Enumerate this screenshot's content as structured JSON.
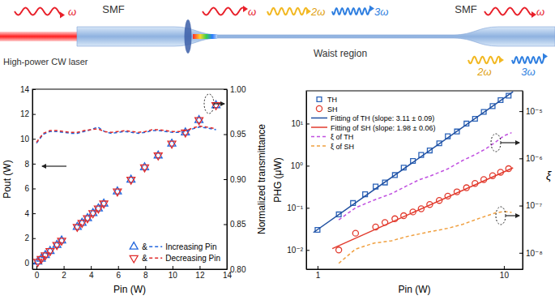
{
  "diagram": {
    "labels": [
      "SMF",
      "High-power CW laser",
      "ω",
      "ω",
      "2ω",
      "3ω",
      "Waist region",
      "SMF",
      "ω",
      "2ω",
      "3ω"
    ]
  },
  "chart_data": [
    {
      "type": "scatter",
      "x_label": "Pin (W)",
      "y_label": "Pout (W)",
      "y2_label": "Normalized transmittance",
      "xlim": [
        -0.3,
        14
      ],
      "xticks": [
        0,
        2,
        4,
        6,
        8,
        10,
        12,
        14
      ],
      "ylim": [
        -0.5,
        14
      ],
      "yticks": [
        0,
        2,
        4,
        6,
        8,
        10,
        12,
        14
      ],
      "y2lim": [
        0.8,
        1.0
      ],
      "y2ticks": [
        {
          "value": 0.8,
          "label": "0.80"
        },
        0.85,
        {
          "value": 0.9,
          "label": "0.90"
        },
        0.95,
        {
          "value": 1.0,
          "label": "1.00"
        }
      ],
      "grid": false,
      "legend": "lower right",
      "annotations": [
        {
          "text": "&"
        },
        {
          "text": "&"
        }
      ],
      "series": [
        {
          "name": "Increasing Pin",
          "type": "scatter",
          "marker": "triangle-up",
          "color": "#2266dd",
          "x": [
            0.1,
            0.35,
            0.65,
            1.0,
            1.5,
            1.85,
            3.0,
            3.35,
            3.75,
            4.15,
            4.55,
            4.95,
            5.95,
            6.95,
            7.95,
            8.95,
            9.95,
            10.95,
            11.95,
            13.2
          ],
          "values": [
            0.1,
            0.33,
            0.62,
            0.96,
            1.45,
            1.8,
            2.9,
            3.22,
            3.6,
            4.0,
            4.38,
            4.78,
            5.75,
            6.7,
            7.7,
            8.65,
            9.6,
            10.5,
            11.5,
            12.7
          ]
        },
        {
          "name": "Decreasing Pin",
          "type": "scatter",
          "marker": "triangle-down",
          "color": "#e02a2a",
          "x": [
            0.1,
            0.35,
            0.65,
            1.0,
            1.5,
            1.85,
            3.0,
            3.35,
            3.75,
            4.15,
            4.55,
            4.95,
            5.95,
            6.95,
            7.95,
            8.95,
            9.95,
            10.95,
            11.95,
            13.2
          ],
          "values": [
            0.1,
            0.34,
            0.63,
            0.97,
            1.46,
            1.81,
            2.92,
            3.24,
            3.62,
            4.02,
            4.4,
            4.8,
            5.77,
            6.72,
            7.72,
            8.67,
            9.62,
            10.52,
            11.52,
            12.72
          ]
        },
        {
          "type": "line",
          "line_style": "dashed",
          "axis": "y2",
          "color": "#2266dd",
          "x": [
            0,
            0.5,
            1,
            1.5,
            2,
            2.5,
            3,
            3.5,
            4,
            4.5,
            5,
            5.5,
            6,
            6.5,
            7,
            7.5,
            8,
            8.5,
            9,
            9.5,
            10,
            10.5,
            11,
            11.5,
            12,
            12.5,
            13.2
          ],
          "values": [
            0.94,
            0.95,
            0.953,
            0.953,
            0.952,
            0.951,
            0.951,
            0.953,
            0.955,
            0.958,
            0.953,
            0.951,
            0.952,
            0.953,
            0.952,
            0.951,
            0.952,
            0.954,
            0.954,
            0.953,
            0.952,
            0.952,
            0.953,
            0.956,
            0.958,
            0.957,
            0.955
          ]
        },
        {
          "type": "line",
          "line_style": "dashed",
          "axis": "y2",
          "color": "#e02a2a",
          "x": [
            0,
            0.5,
            1,
            1.5,
            2,
            2.5,
            3,
            3.5,
            4,
            4.5,
            5,
            5.5,
            6,
            6.5,
            7,
            7.5,
            8,
            8.5,
            9,
            9.5,
            10,
            10.5,
            11,
            11.5,
            12,
            12.5,
            13.2
          ],
          "values": [
            0.941,
            0.951,
            0.954,
            0.954,
            0.953,
            0.952,
            0.952,
            0.954,
            0.955,
            0.956,
            0.953,
            0.952,
            0.953,
            0.954,
            0.953,
            0.952,
            0.953,
            0.955,
            0.955,
            0.954,
            0.953,
            0.953,
            0.954,
            0.957,
            0.959,
            0.958,
            0.956
          ]
        }
      ]
    },
    {
      "type": "scatter",
      "log": true,
      "x_label": "Pin (W)",
      "y_label": "PHG (μW)",
      "y2_label": "ξ",
      "xlim": [
        0.87,
        12.6
      ],
      "xticks": [
        1,
        10
      ],
      "ylim": [
        0.0035,
        60
      ],
      "yticks": [
        {
          "value": 0.01,
          "label": "10⁻²"
        },
        {
          "value": 0.1,
          "label": "10⁻¹"
        },
        {
          "value": 1,
          "label": "10⁰"
        },
        {
          "value": 10,
          "label": "10¹"
        }
      ],
      "y2lim": [
        4.5e-09,
        2.7e-05
      ],
      "y2ticks": [
        {
          "value": 1e-08,
          "label": "10⁻⁸"
        },
        {
          "value": 1e-07,
          "label": "10⁻⁷"
        },
        {
          "value": 1e-06,
          "label": "10⁻⁶"
        },
        {
          "value": 1e-05,
          "label": "10⁻⁵"
        }
      ],
      "grid": false,
      "legend": "upper left",
      "series": [
        {
          "name": "TH",
          "type": "scatter",
          "marker": "square",
          "color": "#2a62b8",
          "x": [
            1.0,
            1.3,
            1.55,
            1.8,
            2.05,
            2.3,
            2.6,
            2.9,
            3.25,
            3.6,
            4.0,
            4.5,
            5.0,
            5.6,
            6.3,
            7.0,
            7.8,
            8.7,
            9.6,
            10.6
          ],
          "values": [
            0.03,
            0.07,
            0.13,
            0.21,
            0.32,
            0.4,
            0.6,
            0.9,
            1.3,
            1.8,
            2.3,
            3.4,
            5.0,
            6.5,
            10,
            13,
            19,
            26,
            36,
            46
          ]
        },
        {
          "name": "SH",
          "type": "scatter",
          "marker": "circle",
          "color": "#e23b2e",
          "x": [
            1.3,
            1.6,
            2.05,
            2.3,
            2.6,
            2.9,
            3.25,
            3.6,
            4.0,
            4.5,
            5.0,
            5.6,
            6.3,
            7.0,
            7.8,
            8.7,
            9.6,
            10.6
          ],
          "values": [
            0.01,
            0.025,
            0.035,
            0.045,
            0.055,
            0.065,
            0.08,
            0.095,
            0.12,
            0.15,
            0.19,
            0.24,
            0.3,
            0.38,
            0.47,
            0.58,
            0.7,
            0.85
          ]
        },
        {
          "name": "Fitting of TH (slope: 3.11 ± 0.09)",
          "type": "line",
          "line_style": "solid",
          "color": "#1f4fa0",
          "x": [
            0.95,
            11.2
          ],
          "values": [
            0.026,
            57
          ]
        },
        {
          "name": "Fitting of SH (slope: 1.98 ± 0.06)",
          "type": "line",
          "line_style": "solid",
          "color": "#e23b2e",
          "x": [
            1.2,
            11.2
          ],
          "values": [
            0.0108,
            0.89
          ]
        },
        {
          "name": "ξ of TH",
          "type": "line",
          "line_style": "dashed",
          "axis": "y2",
          "color": "#c050e0",
          "x": [
            1.3,
            1.6,
            2.0,
            2.5,
            3.0,
            3.5,
            4.0,
            5.0,
            6.0,
            7.0,
            8.0,
            9.0,
            10.0,
            11.0
          ],
          "values": [
            5e-08,
            9e-08,
            1.3e-07,
            1.8e-07,
            2.6e-07,
            3.5e-07,
            4.2e-07,
            6e-07,
            9e-07,
            1.2e-06,
            1.6e-06,
            2.2e-06,
            3e-06,
            3.5e-06
          ]
        },
        {
          "name": "ξ of SH",
          "type": "line",
          "line_style": "dashed",
          "axis": "y2",
          "color": "#f0a040",
          "x": [
            1.3,
            1.6,
            2.0,
            2.5,
            3.0,
            3.5,
            4.0,
            5.0,
            6.0,
            7.0,
            8.0,
            9.0,
            10.0,
            11.0
          ],
          "values": [
            6e-09,
            1.2e-08,
            1.6e-08,
            1.8e-08,
            2.2e-08,
            2.5e-08,
            2.8e-08,
            3.3e-08,
            4e-08,
            5e-08,
            6e-08,
            7e-08,
            7.5e-08,
            7.2e-08
          ]
        }
      ]
    }
  ]
}
